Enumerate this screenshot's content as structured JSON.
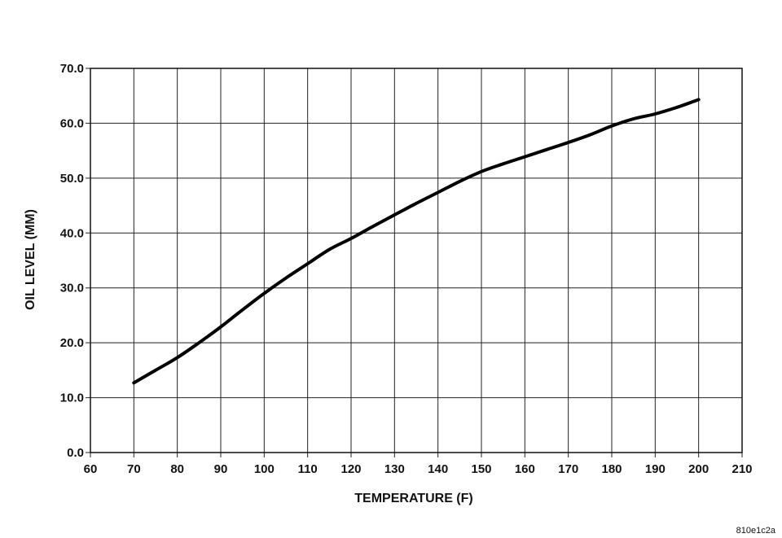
{
  "figure_code": "810e1c2a",
  "chart_data": {
    "type": "line",
    "title": "",
    "xlabel": "TEMPERATURE  (F)",
    "ylabel": "OIL LEVEL (MM)",
    "xlim": [
      60,
      210
    ],
    "ylim": [
      0,
      70
    ],
    "x_ticks": [
      "60",
      "70",
      "80",
      "90",
      "100",
      "110",
      "120",
      "130",
      "140",
      "150",
      "160",
      "170",
      "180",
      "190",
      "200",
      "210"
    ],
    "y_ticks": [
      "0.0",
      "10.0",
      "20.0",
      "30.0",
      "40.0",
      "50.0",
      "60.0",
      "70.0"
    ],
    "grid": true,
    "series": [
      {
        "x": [
          70,
          75,
          80,
          85,
          90,
          95,
          100,
          105,
          110,
          115,
          120,
          125,
          130,
          135,
          140,
          145,
          150,
          155,
          160,
          165,
          170,
          175,
          180,
          185,
          190,
          195,
          200
        ],
        "y": [
          12.7,
          15.0,
          17.3,
          20.0,
          22.9,
          26.0,
          29.0,
          31.8,
          34.4,
          37.0,
          39.0,
          41.2,
          43.3,
          45.4,
          47.4,
          49.4,
          51.2,
          52.6,
          53.9,
          55.2,
          56.5,
          57.9,
          59.5,
          60.8,
          61.7,
          62.9,
          64.3
        ]
      }
    ]
  }
}
